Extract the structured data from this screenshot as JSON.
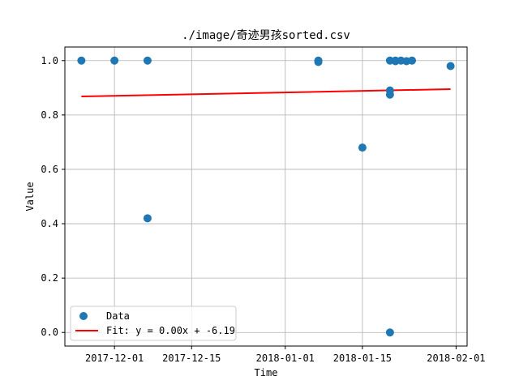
{
  "chart_data": {
    "type": "scatter",
    "title": "./image/奇迹男孩sorted.csv",
    "xlabel": "Time",
    "ylabel": "Value",
    "x_axis": {
      "type": "date",
      "range": [
        "2017-11-22",
        "2018-02-03"
      ],
      "ticks": [
        "2017-12-01",
        "2017-12-15",
        "2018-01-01",
        "2018-01-15",
        "2018-02-01"
      ]
    },
    "y_axis": {
      "range": [
        -0.05,
        1.05
      ],
      "ticks": [
        0.0,
        0.2,
        0.4,
        0.6,
        0.8,
        1.0
      ],
      "tick_labels": [
        "0.0",
        "0.2",
        "0.4",
        "0.6",
        "0.8",
        "1.0"
      ]
    },
    "grid": true,
    "legend": {
      "placement": "lower-left",
      "entries": [
        {
          "label": "Data",
          "kind": "scatter",
          "color": "#1f77b4"
        },
        {
          "label": "Fit: y = 0.00x + -6.19",
          "kind": "line",
          "color": "#ff0000"
        }
      ]
    },
    "series": [
      {
        "name": "Data",
        "kind": "scatter",
        "color": "#1f77b4",
        "points": [
          {
            "x": "2017-11-25",
            "y": 1.0
          },
          {
            "x": "2017-12-01",
            "y": 1.0
          },
          {
            "x": "2017-12-07",
            "y": 1.0
          },
          {
            "x": "2017-12-07",
            "y": 0.42
          },
          {
            "x": "2018-01-07",
            "y": 1.0
          },
          {
            "x": "2018-01-07",
            "y": 0.995
          },
          {
            "x": "2018-01-15",
            "y": 0.68
          },
          {
            "x": "2018-01-20",
            "y": 1.0
          },
          {
            "x": "2018-01-20",
            "y": 0.89
          },
          {
            "x": "2018-01-20",
            "y": 0.875
          },
          {
            "x": "2018-01-20",
            "y": 0.0
          },
          {
            "x": "2018-01-21",
            "y": 1.0
          },
          {
            "x": "2018-01-21",
            "y": 0.998
          },
          {
            "x": "2018-01-22",
            "y": 1.0
          },
          {
            "x": "2018-01-23",
            "y": 0.998
          },
          {
            "x": "2018-01-24",
            "y": 1.0
          },
          {
            "x": "2018-01-31",
            "y": 0.98
          }
        ]
      },
      {
        "name": "Fit: y = 0.00x + -6.19",
        "kind": "line",
        "color": "#ff0000",
        "points": [
          {
            "x": "2017-11-25",
            "y": 0.868
          },
          {
            "x": "2018-01-31",
            "y": 0.895
          }
        ]
      }
    ]
  }
}
